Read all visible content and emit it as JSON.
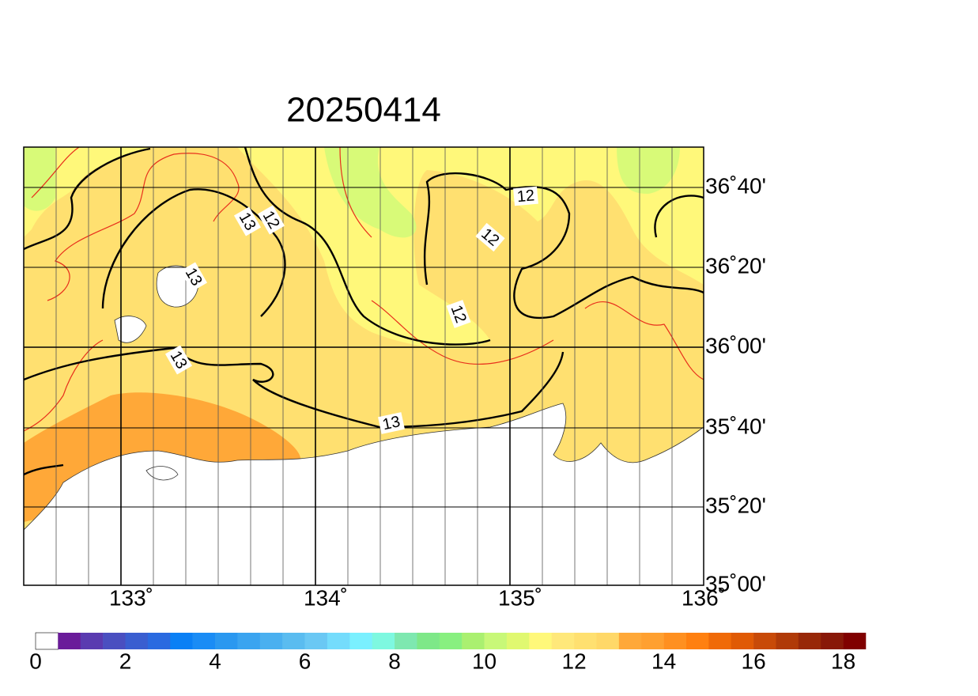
{
  "title": "20250414",
  "map": {
    "lon_labels": [
      "133˚",
      "134˚",
      "135˚",
      "136˚"
    ],
    "lat_labels": [
      "36˚40'",
      "36˚20'",
      "36˚00'",
      "35˚40'",
      "35˚20'",
      "35˚00'"
    ],
    "contour_labels": [
      "13",
      "12",
      "13",
      "12",
      "12",
      "12",
      "13",
      "13"
    ]
  },
  "colorbar": {
    "range": [
      0,
      18.5
    ],
    "ticks": [
      0,
      2,
      4,
      6,
      8,
      10,
      12,
      14,
      16,
      18
    ],
    "colors": [
      "#ffffff",
      "#6a1b9a",
      "#5a3bb0",
      "#4a4fc0",
      "#3a5ed0",
      "#2a6ae0",
      "#0a80f5",
      "#1a8cf5",
      "#2a98f0",
      "#3aa4f0",
      "#4ab0f0",
      "#5abcf0",
      "#6ac8f4",
      "#74dcfc",
      "#7af0ff",
      "#7ef8e0",
      "#7ee8b0",
      "#7ee888",
      "#88f080",
      "#aaf070",
      "#c8f878",
      "#e0f870",
      "#fff87a",
      "#ffe87a",
      "#ffe070",
      "#ffd868",
      "#ffa838",
      "#ffa030",
      "#ff9020",
      "#ff8010",
      "#f06a08",
      "#e05a05",
      "#c84a08",
      "#b03a08",
      "#982808",
      "#881808",
      "#800000"
    ]
  }
}
